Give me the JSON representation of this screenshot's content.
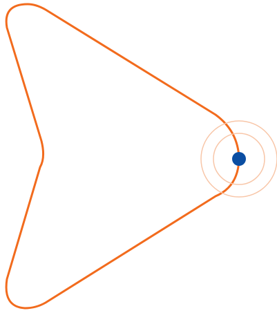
{
  "graphic": {
    "shape_icon": "rounded-arrowhead-outline",
    "marker_icon": "pulsing-location-dot",
    "colors": {
      "outline": "#F26B1D",
      "pulse_ring": "#F8C6A8",
      "marker": "#0B4EA2",
      "background": "#FFFFFF"
    }
  }
}
